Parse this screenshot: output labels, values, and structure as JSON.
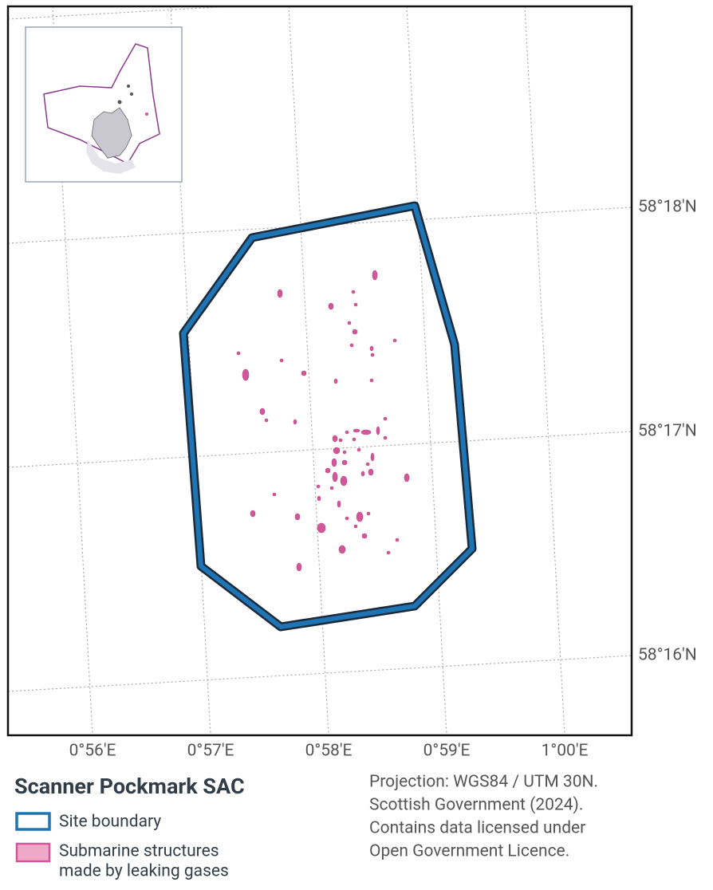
{
  "title": "Scanner Pockmark SAC",
  "longitude_labels": [
    "0°56'E",
    "0°57'E",
    "0°58'E",
    "0°59'E",
    "1°00'E"
  ],
  "latitude_labels": [
    "58°18'N",
    "58°17'N",
    "58°16'N"
  ],
  "legend": {
    "items": [
      [
        "Site boundary"
      ],
      [
        "Submarine structures",
        "made by leaking gases"
      ]
    ]
  },
  "credits": [
    "Projection: WGS84 / UTM 30N.",
    "Scottish Government (2024).",
    "Contains data licensed under",
    "Open Government Licence."
  ]
}
